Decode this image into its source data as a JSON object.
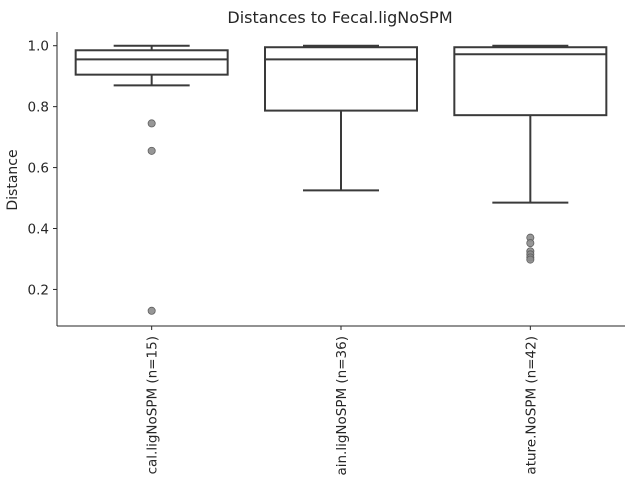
{
  "chart_data": {
    "type": "box",
    "title": "Distances to Fecal.ligNoSPM",
    "xlabel": "",
    "ylabel": "Distance",
    "ylim": [
      0.08,
      1.045
    ],
    "yticks": [
      0.2,
      0.4,
      0.6,
      0.8,
      1.0
    ],
    "ytick_labels": [
      "0.2",
      "0.4",
      "0.6",
      "0.8",
      "1.0"
    ],
    "grid": false,
    "categories": [
      "cal.ligNoSPM (n=15)",
      "ain.ligNoSPM (n=36)",
      "ature.NoSPM (n=42)"
    ],
    "boxes": [
      {
        "whisker_low": 0.87,
        "q1": 0.905,
        "median": 0.955,
        "q3": 0.985,
        "whisker_high": 1.0,
        "outliers": [
          0.745,
          0.655,
          0.13
        ]
      },
      {
        "whisker_low": 0.525,
        "q1": 0.787,
        "median": 0.955,
        "q3": 0.995,
        "whisker_high": 1.0,
        "outliers": []
      },
      {
        "whisker_low": 0.485,
        "q1": 0.772,
        "median": 0.972,
        "q3": 0.995,
        "whisker_high": 1.0,
        "outliers": [
          0.37,
          0.352,
          0.325,
          0.315,
          0.305,
          0.298
        ]
      }
    ],
    "colors": {
      "box_edge": "#3a3a3a",
      "outlier": "#8c8c8c",
      "axis": "#262626"
    }
  }
}
